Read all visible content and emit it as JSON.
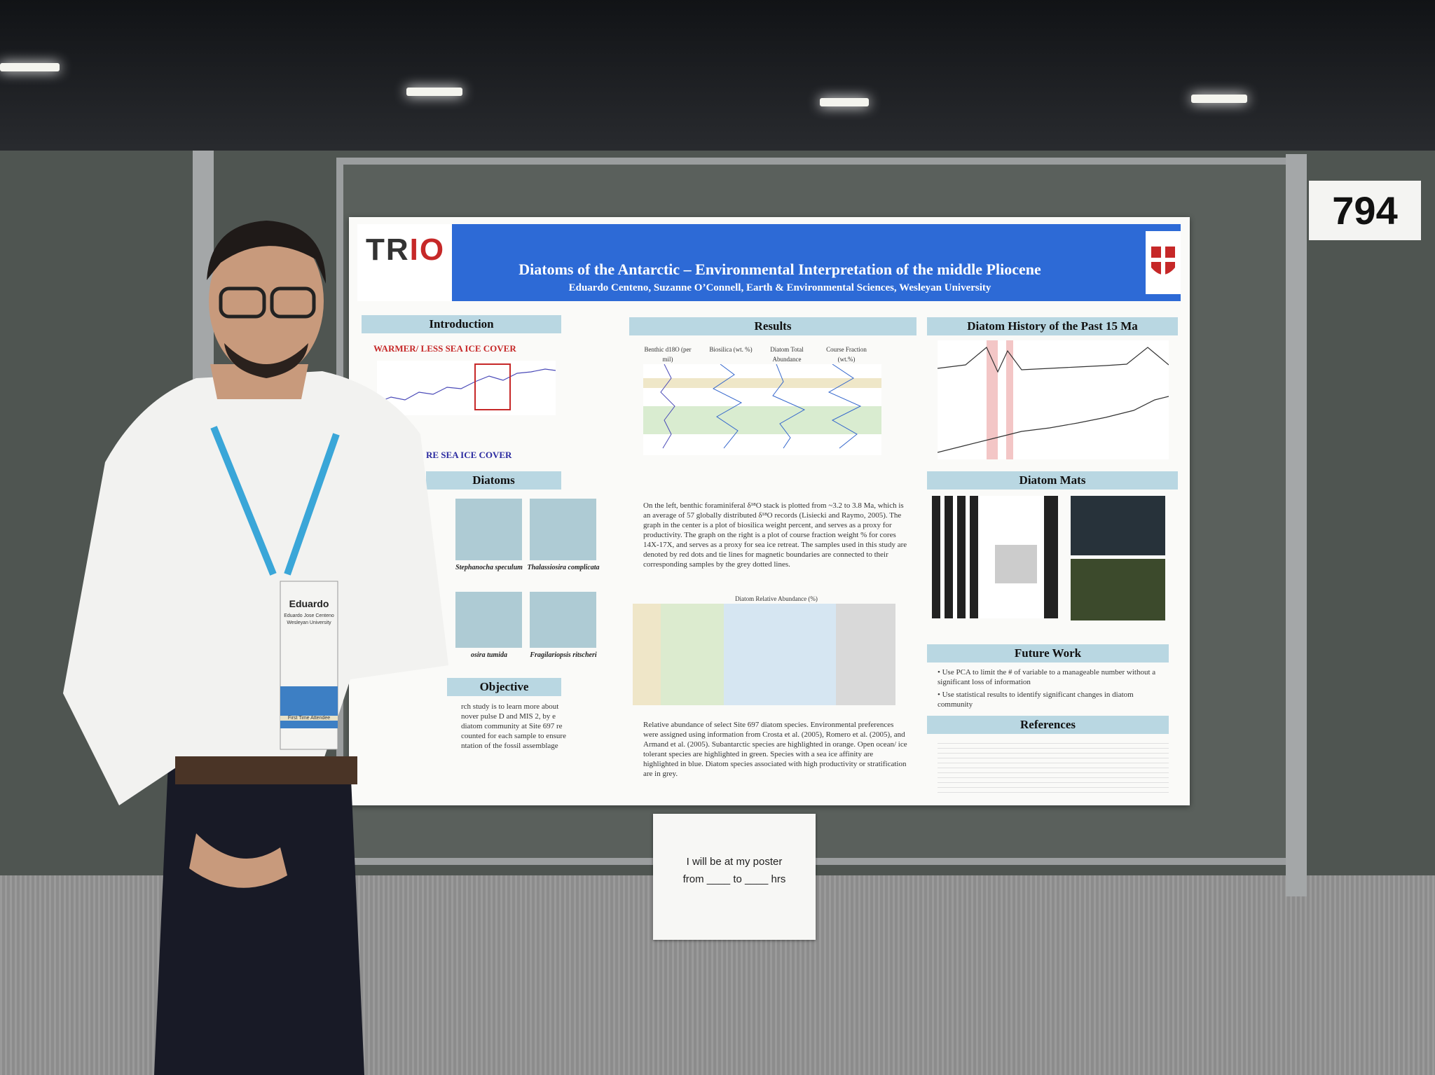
{
  "booth": {
    "number": "794"
  },
  "poster": {
    "logo": {
      "text_black": "TR",
      "text_red": "IO"
    },
    "title": "Diatoms of the Antarctic – Environmental Interpretation of the middle Pliocene",
    "authors": "Eduardo Centeno, Suzanne O’Connell, Earth & Environmental Sciences, Wesleyan University",
    "sections": {
      "introduction": "Introduction",
      "results": "Results",
      "history": "Diatom History of the Past 15 Ma",
      "diatoms": "Diatoms",
      "objective": "Objective",
      "mats": "Diatom Mats",
      "future_work": "Future Work",
      "references": "References"
    },
    "intro_labels": {
      "warmer": "WARMER/ LESS SEA ICE COVER",
      "colder": "RE SEA ICE COVER"
    },
    "results_columns": [
      "Benthic d18O (per mil)",
      "Biosilica (wt. %)",
      "Diatom Total Abundance",
      "Course Fraction (wt.%)"
    ],
    "results_text": "On the left, benthic foraminiferal δ¹⁸O stack is plotted from ~3.2 to 3.8 Ma, which is an average of 57 globally distributed δ¹⁸O records (Lisiecki and Raymo, 2005). The graph in the center is a plot of biosilica weight percent, and serves as a proxy for productivity. The graph on the right is a plot of course fraction weight % for cores 14X-17X, and serves as a proxy for sea ice retreat. The samples used in this study are denoted by red dots and tie lines for magnetic boundaries are connected to their corresponding samples by the grey dotted lines.",
    "abundance_title": "Diatom Relative Abundance (%)",
    "abundance_text": "Relative abundance of select Site 697 diatom species. Environmental preferences were assigned using information from Crosta et al. (2005), Romero et al. (2005), and Armand et al. (2005). Subantarctic species are highlighted in orange. Open ocean/ ice tolerant species are highlighted in green. Species with a sea ice affinity are highlighted in blue. Diatom species associated with high productivity or stratification are in grey.",
    "diatom_captions": [
      "Stephanocha speculum",
      "Thalassiosira complicata",
      "osira tumida",
      "Fragilariopsis ritscheri"
    ],
    "objective_text": "rch study is to learn more about nover pulse D and MIS 2, by e diatom community at Site 697 re counted for each sample to ensure ntation of the fossil assemblage",
    "future_work_items": [
      "Use PCA to limit the # of variable to a manageable number without a significant loss of information",
      "Use statistical results to identify significant changes in diatom community"
    ]
  },
  "badge": {
    "name": "Eduardo",
    "full_name": "Eduardo Jose Centeno",
    "org": "Wesleyan University",
    "ribbon": "First Time Attendee"
  },
  "sign": {
    "line1": "I will be at my poster",
    "line2": "from ____ to ____ hrs"
  },
  "colors": {
    "banner": "#2d6ad6",
    "section_header": "#b9d7e2",
    "board": "#5a605c",
    "shirt": "#f2f2f0",
    "lanyard": "#3aa6d8"
  }
}
